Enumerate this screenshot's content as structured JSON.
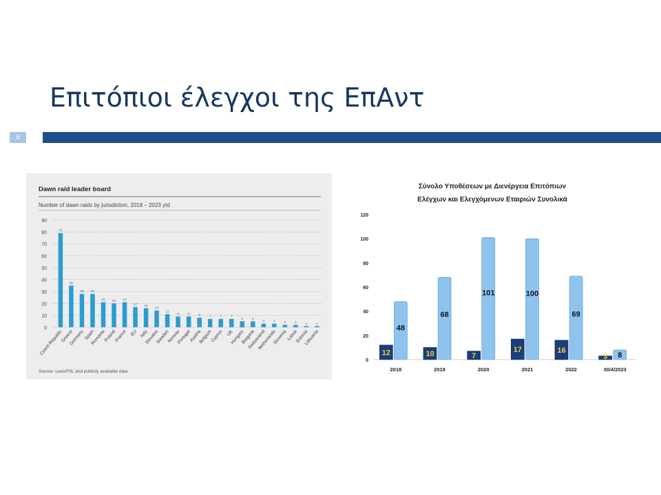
{
  "slide": {
    "title": "Επιτόπιοι έλεγχοι της ΕπΑντ",
    "number": "8"
  },
  "colors": {
    "title": "#17375e",
    "rule": "#1f4e8c",
    "left_bar": "#2b9cd1",
    "right_dark": "#1a3f7a",
    "right_light": "#8ec3ee",
    "dark_label": "#f5d033"
  },
  "chart_data": [
    {
      "type": "bar",
      "title": "Dawn raid leader board",
      "subtitle": "Number of dawn raids by jurisdiction, 2018 – 2023 ytd",
      "source": "Source: LexisPSL and publicly available data",
      "categories": [
        "Czech Republic",
        "Greece",
        "Germany",
        "Spain",
        "Romania",
        "Poland",
        "France",
        "EU",
        "Italy",
        "Slovakia",
        "Sweden",
        "Norway",
        "Portugal",
        "Austria",
        "Belgium",
        "Cyprus",
        "UK",
        "Hungary",
        "Bulgaria",
        "Switzerland",
        "Netherlands",
        "Slovenia",
        "Latvia",
        "Estonia",
        "Lithuania"
      ],
      "values": [
        79,
        35,
        28,
        28,
        21,
        20,
        21,
        17,
        16,
        14,
        11,
        9,
        9,
        8,
        7,
        7,
        7,
        5,
        5,
        3,
        3,
        2,
        2,
        1,
        1
      ],
      "yticks": [
        "0",
        "10",
        "20",
        "30",
        "40",
        "50",
        "60",
        "70",
        "80",
        "90"
      ],
      "ylim": [
        0,
        90
      ],
      "grid": true
    },
    {
      "type": "bar",
      "title": "Σύνολο Υποθέσεων με Διενέργεια Επιτόπιων Ελέγχων και Ελεγχόμενων Εταιριών Συνολικά",
      "categories": [
        "2018",
        "2019",
        "2020",
        "2021",
        "2022",
        "30/4/2023"
      ],
      "series": [
        {
          "values": [
            12,
            10,
            7,
            17,
            16,
            3
          ]
        },
        {
          "values": [
            48,
            68,
            101,
            100,
            69,
            8
          ]
        }
      ],
      "yticks": [
        "0",
        "20",
        "40",
        "60",
        "80",
        "100",
        "120"
      ],
      "ylim": [
        0,
        120
      ],
      "grid": false
    }
  ]
}
